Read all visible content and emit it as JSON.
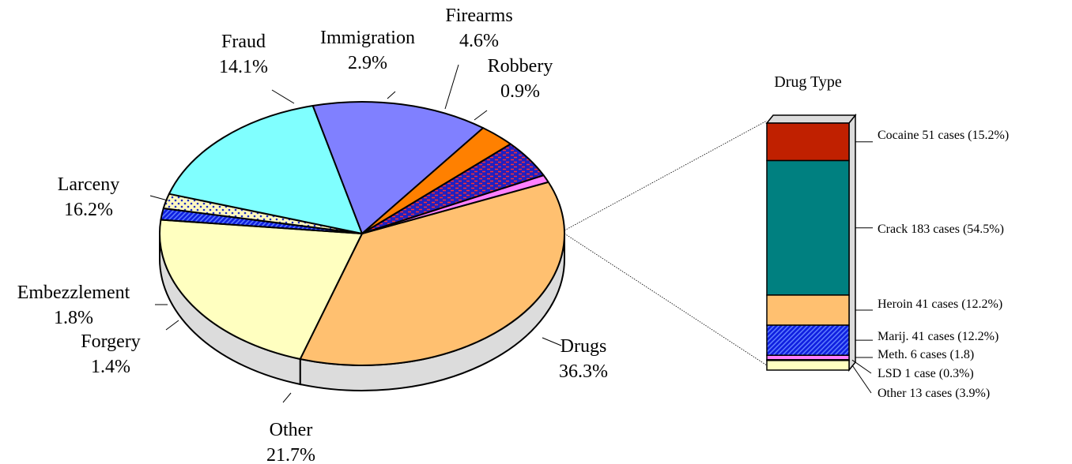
{
  "chart_data": [
    {
      "type": "pie",
      "slices": [
        {
          "label": "Drugs",
          "value_label": "36.3%",
          "value": 36.3,
          "color": "#ffc070"
        },
        {
          "label": "Other",
          "value_label": "21.7%",
          "value": 21.7,
          "color": "#ffffc0"
        },
        {
          "label": "Forgery",
          "value_label": "1.4%",
          "value": 1.4,
          "color": "#1020e0",
          "pattern": "blue-hatch"
        },
        {
          "label": "Embezzlement",
          "value_label": "1.8%",
          "value": 1.8,
          "color": "#fff8c0",
          "pattern": "blue-dots"
        },
        {
          "label": "Larceny",
          "value_label": "16.2%",
          "value": 16.2,
          "color": "#80ffff"
        },
        {
          "label": "Fraud",
          "value_label": "14.1%",
          "value": 14.1,
          "color": "#8080ff"
        },
        {
          "label": "Immigration",
          "value_label": "2.9%",
          "value": 2.9,
          "color": "#ff8000"
        },
        {
          "label": "Firearms",
          "value_label": "4.6%",
          "value": 4.6,
          "color": "#2020c0",
          "pattern": "red-brick"
        },
        {
          "label": "Robbery",
          "value_label": "0.9%",
          "value": 0.9,
          "color": "#ff80ff"
        }
      ],
      "side_color": "#dcdcdc"
    },
    {
      "type": "bar",
      "stacked": true,
      "title": "Drug Type",
      "series": [
        {
          "label": "Cocaine 51 cases (15.2%)",
          "value": 15.2,
          "color": "#c02000"
        },
        {
          "label": "Crack 183 cases (54.5%)",
          "value": 54.5,
          "color": "#008080"
        },
        {
          "label": "Heroin 41 cases (12.2%)",
          "value": 12.2,
          "color": "#ffc070"
        },
        {
          "label": "Marij. 41 cases (12.2%)",
          "value": 12.2,
          "color": "#1020e0",
          "pattern": "blue-hatch"
        },
        {
          "label": "Meth. 6 cases (1.8)",
          "value": 1.8,
          "color": "#ff80ff"
        },
        {
          "label": "LSD 1 case (0.3%)",
          "value": 0.3,
          "color": "#a0a0a0"
        },
        {
          "label": "Other 13 cases (3.9%)",
          "value": 3.9,
          "color": "#ffffc0"
        }
      ],
      "side_color": "#dcdcdc"
    }
  ]
}
